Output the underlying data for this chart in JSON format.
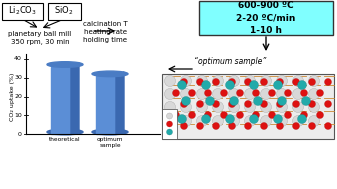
{
  "bar_categories": [
    "theoretical",
    "optimum\nsample"
  ],
  "bar_values": [
    36,
    31
  ],
  "ylabel": "CO₂ uptake (%)",
  "ylim": [
    0,
    40
  ],
  "yticks": [
    0,
    10,
    20,
    30,
    40
  ],
  "box1_text": "Li₂CO₃",
  "box2_text": "SiO₂",
  "step1_text": "planetary ball mill\n350 rpm, 30 min",
  "step2_text": "calcination T\nheating rate\nholding time",
  "box3_text": "600-900 ºC\n2-20 ºC/min\n1-10 h",
  "box3_bg": "#80FFFF",
  "optimum_label": "“optimum sample”",
  "bg_color": "#FFFFFF",
  "bar_front": "#5B8ED6",
  "bar_side": "#3A68B0",
  "bar_top": "#4A7CC4"
}
